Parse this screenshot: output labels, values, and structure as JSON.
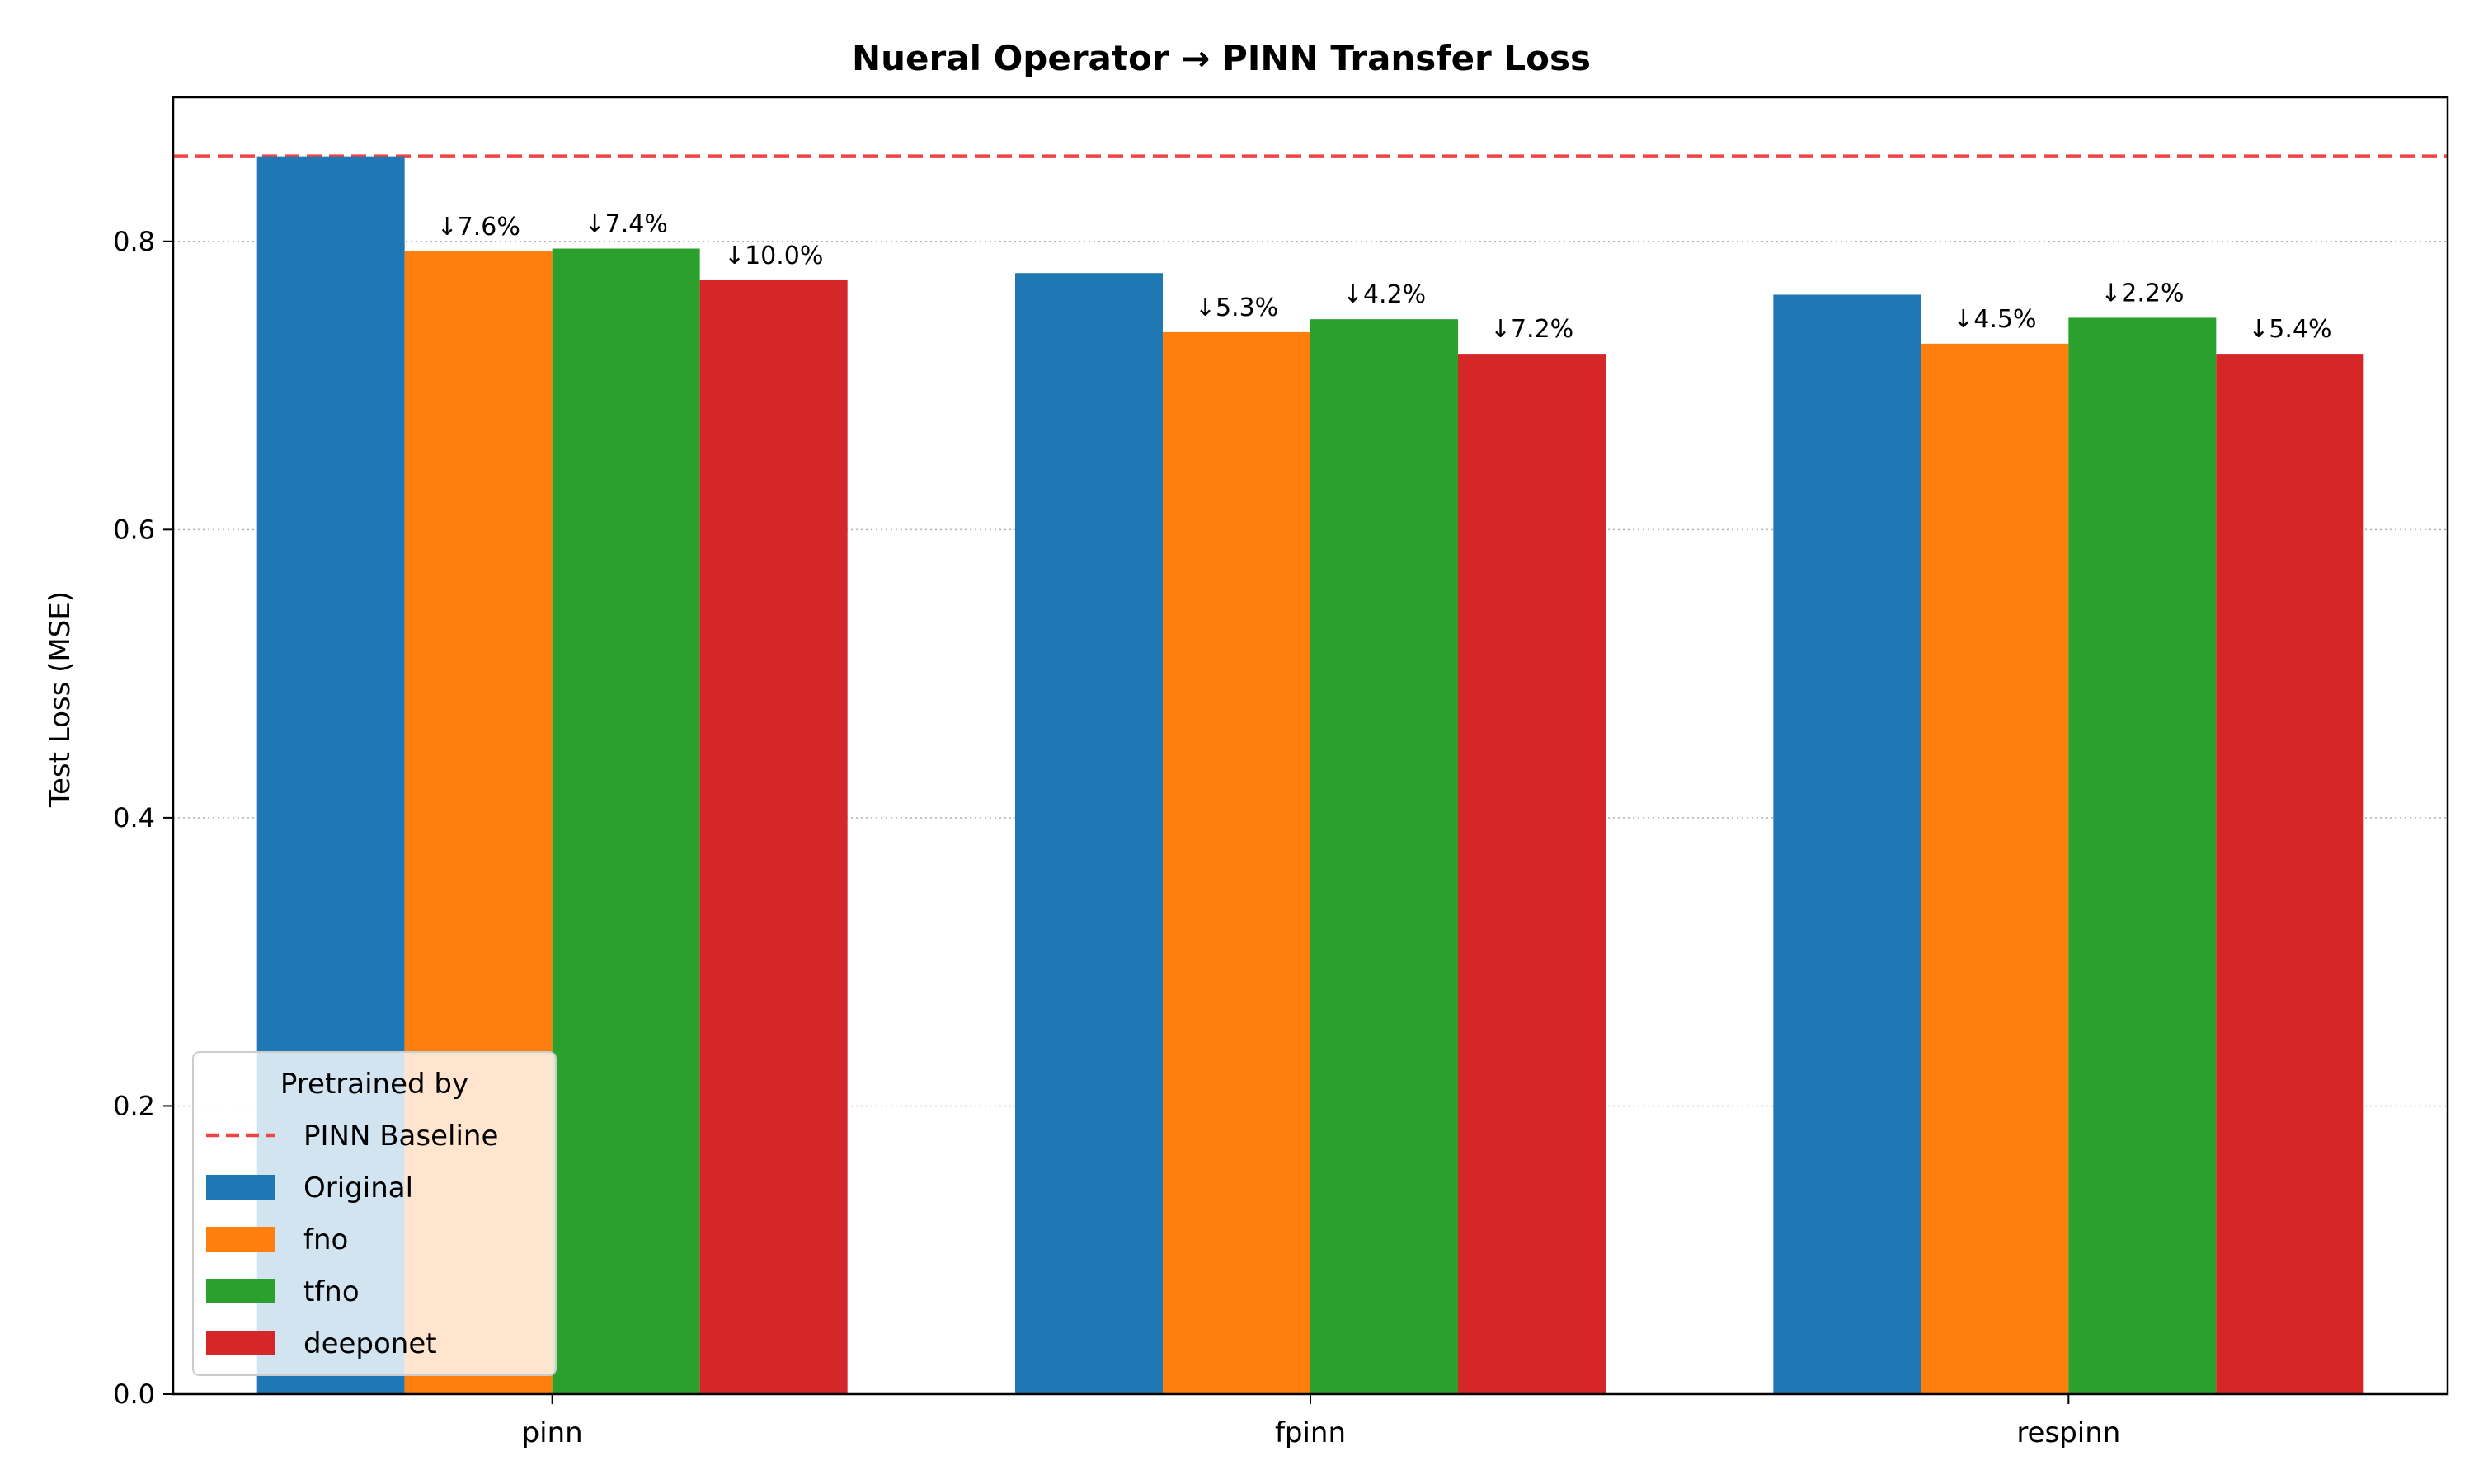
{
  "chart_data": {
    "type": "bar",
    "title": "Nueral Operator → PINN Transfer Loss",
    "xlabel": "",
    "ylabel": "Test Loss (MSE)",
    "ylim": [
      0,
      0.9
    ],
    "yticks": [
      "0.0",
      "0.2",
      "0.4",
      "0.6",
      "0.8"
    ],
    "grid": "y-axis dotted",
    "categories": [
      "pinn",
      "fpinn",
      "respinn"
    ],
    "series": [
      {
        "name": "Original",
        "color": "#1f77b4",
        "values": [
          0.859,
          0.778,
          0.763
        ],
        "labels": [
          "",
          "",
          ""
        ]
      },
      {
        "name": "fno",
        "color": "#ff7f0e",
        "values": [
          0.793,
          0.737,
          0.729
        ],
        "labels": [
          "↓7.6%",
          "↓5.3%",
          "↓4.5%"
        ]
      },
      {
        "name": "tfno",
        "color": "#2ca02c",
        "values": [
          0.795,
          0.746,
          0.747
        ],
        "labels": [
          "↓7.4%",
          "↓4.2%",
          "↓2.2%"
        ]
      },
      {
        "name": "deeponet",
        "color": "#d62728",
        "values": [
          0.773,
          0.722,
          0.722
        ],
        "labels": [
          "↓10.0%",
          "↓7.2%",
          "↓5.4%"
        ]
      }
    ],
    "baseline": {
      "name": "PINN Baseline",
      "value": 0.859,
      "color": "#ef4444",
      "style": "dashed"
    },
    "legend": {
      "title": "Pretrained by",
      "placement": "lower-left"
    }
  }
}
